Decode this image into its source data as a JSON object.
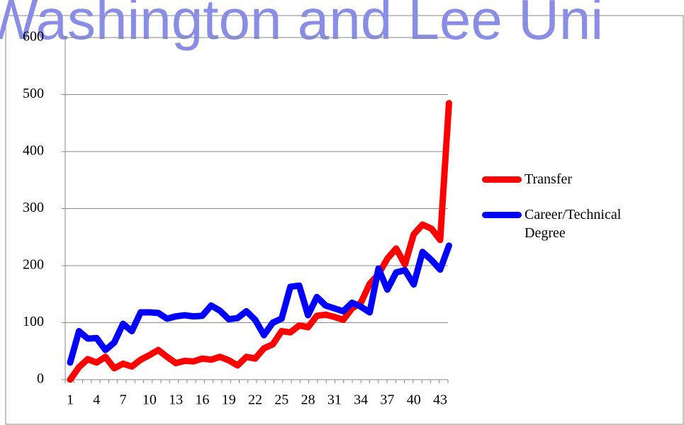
{
  "chart_data": {
    "type": "line",
    "annotation": "Washington and Lee Uni",
    "categories": [
      1,
      null,
      null,
      4,
      null,
      null,
      7,
      null,
      null,
      10,
      null,
      null,
      13,
      null,
      null,
      16,
      null,
      null,
      19,
      null,
      null,
      22,
      null,
      null,
      25,
      null,
      null,
      28,
      null,
      null,
      31,
      null,
      null,
      34,
      null,
      null,
      37,
      null,
      null,
      40,
      null,
      null,
      43,
      null
    ],
    "series": [
      {
        "name": "Transfer",
        "color": "#ff0000",
        "values": [
          0,
          22,
          36,
          30,
          40,
          20,
          28,
          23,
          35,
          43,
          52,
          40,
          29,
          33,
          32,
          37,
          35,
          40,
          34,
          25,
          40,
          37,
          55,
          62,
          85,
          83,
          95,
          92,
          112,
          114,
          110,
          105,
          125,
          135,
          168,
          185,
          212,
          230,
          202,
          255,
          272,
          265,
          245,
          485
        ]
      },
      {
        "name": "Career/Technical Degree",
        "color": "#0000ff",
        "values": [
          30,
          85,
          72,
          73,
          52,
          65,
          98,
          85,
          118,
          118,
          117,
          107,
          111,
          113,
          111,
          112,
          130,
          121,
          106,
          108,
          120,
          105,
          78,
          100,
          107,
          163,
          165,
          113,
          145,
          130,
          125,
          120,
          135,
          128,
          118,
          195,
          158,
          188,
          192,
          167,
          224,
          210,
          193,
          235
        ]
      }
    ],
    "ylim": [
      0,
      600
    ],
    "yticks": [
      0,
      100,
      200,
      300,
      400,
      500,
      600
    ],
    "grid": true,
    "legend": "right"
  }
}
